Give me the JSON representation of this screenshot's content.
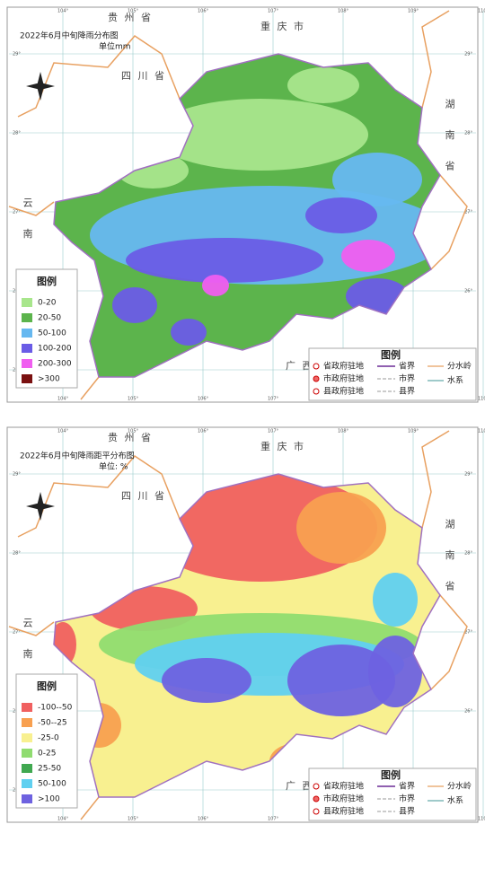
{
  "maps": [
    {
      "province": "贵 州 省",
      "title": "2022年6月中旬降雨分布图",
      "unit": "单位mm",
      "neighbors": {
        "chongqing": "重 庆 市",
        "sichuan": "四 川 省",
        "hunan": "湖 南 省",
        "yunnan": "云 南",
        "guangxi": "广 西"
      },
      "lon_labels": [
        "104°",
        "105°",
        "106°",
        "107°",
        "108°",
        "109°",
        "110°"
      ],
      "lat_labels": [
        "29°",
        "28°",
        "27°",
        "26°",
        "25°"
      ],
      "legend": {
        "title": "图例",
        "items": [
          {
            "label": "0-20",
            "color": "#a8e68c"
          },
          {
            "label": "20-50",
            "color": "#5cb44c"
          },
          {
            "label": "50-100",
            "color": "#66b8f0"
          },
          {
            "label": "100-200",
            "color": "#6a5ce6"
          },
          {
            "label": "200-300",
            "color": "#f05ef0"
          },
          {
            "label": ">300",
            "color": "#7a1010"
          }
        ]
      }
    },
    {
      "province": "贵 州 省",
      "title": "2022年6月中旬降雨距平分布图",
      "unit": "单位: %",
      "neighbors": {
        "chongqing": "重 庆 市",
        "sichuan": "四 川 省",
        "hunan": "湖 南 省",
        "yunnan": "云 南",
        "guangxi": "广 西"
      },
      "lon_labels": [
        "104°",
        "105°",
        "106°",
        "107°",
        "108°",
        "109°",
        "110°"
      ],
      "lat_labels": [
        "29°",
        "28°",
        "27°",
        "26°",
        "25°"
      ],
      "legend": {
        "title": "图例",
        "items": [
          {
            "label": "-100--50",
            "color": "#f06060"
          },
          {
            "label": "-50--25",
            "color": "#f8a050"
          },
          {
            "label": "-25-0",
            "color": "#f8f090"
          },
          {
            "label": "0-25",
            "color": "#90dc70"
          },
          {
            "label": "25-50",
            "color": "#40a850"
          },
          {
            "label": "50-100",
            "color": "#60d0f0"
          },
          {
            "label": ">100",
            "color": "#6e62e0"
          }
        ]
      }
    }
  ],
  "symbol_legend": {
    "title": "图例",
    "items": [
      "省政府驻地",
      "市政府驻地",
      "县政府驻地",
      "省界",
      "市界",
      "县界",
      "分水岭",
      "水系"
    ]
  }
}
